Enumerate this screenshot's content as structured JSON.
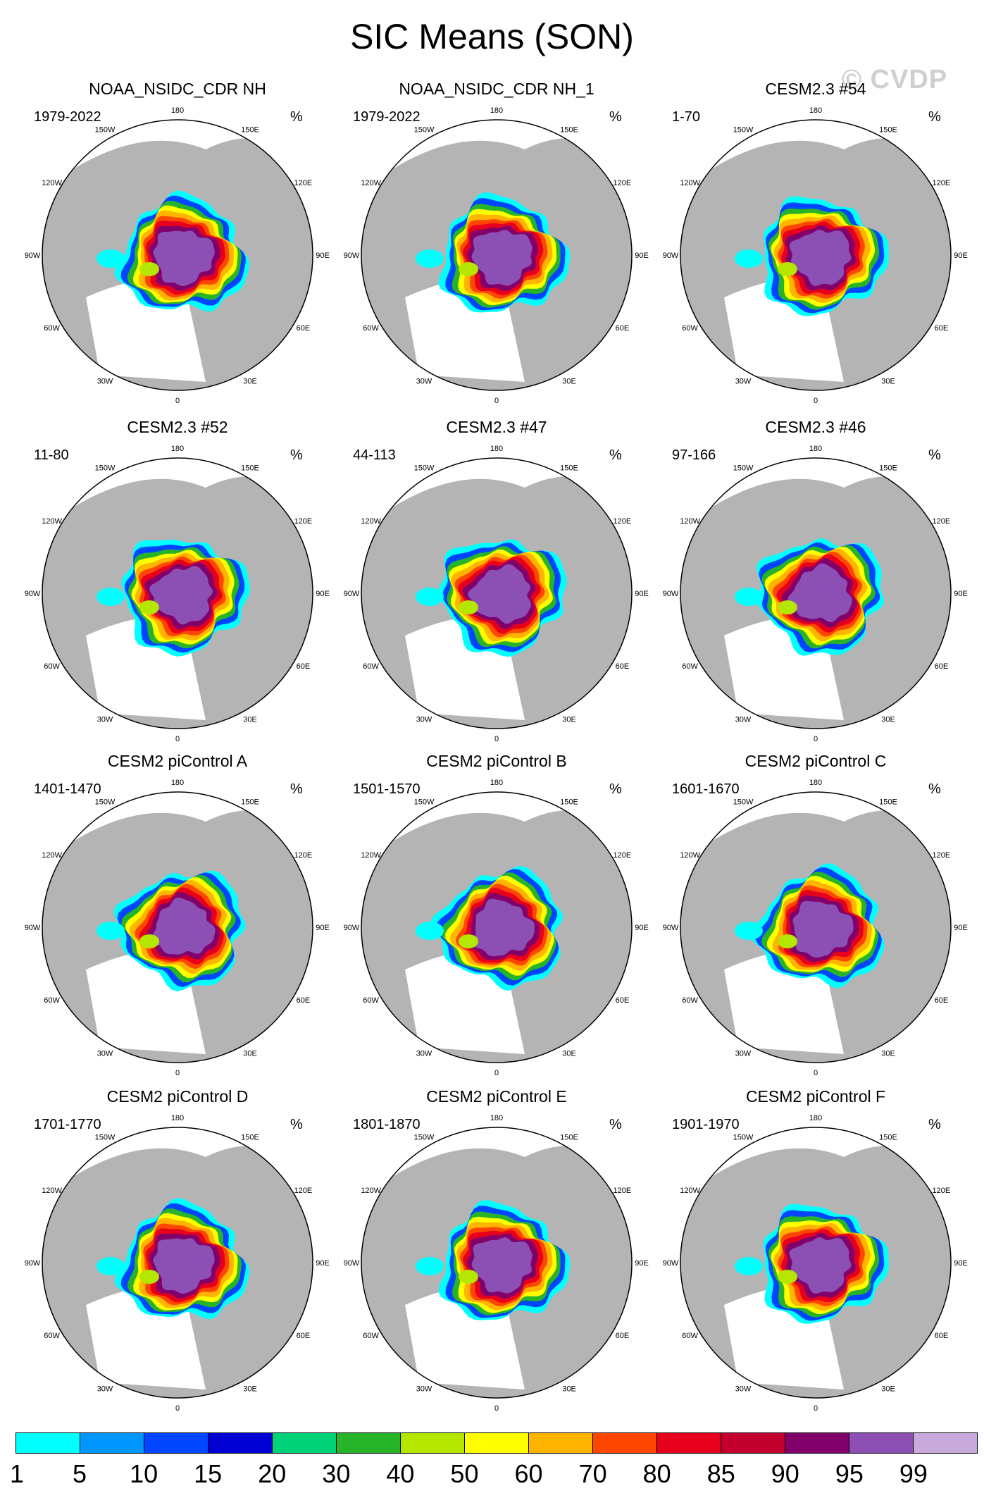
{
  "title": "SIC Means (SON)",
  "watermark": "© CVDP",
  "units": "%",
  "longitude_labels": [
    "180",
    "150E",
    "120E",
    "90E",
    "60E",
    "30E",
    "0",
    "30W",
    "60W",
    "90W",
    "120W",
    "150W"
  ],
  "panels": [
    {
      "title": "NOAA_NSIDC_CDR NH",
      "years": "1979-2022"
    },
    {
      "title": "NOAA_NSIDC_CDR NH_1",
      "years": "1979-2022"
    },
    {
      "title": "CESM2.3 #54",
      "years": "1-70"
    },
    {
      "title": "CESM2.3 #52",
      "years": "11-80"
    },
    {
      "title": "CESM2.3 #47",
      "years": "44-113"
    },
    {
      "title": "CESM2.3 #46",
      "years": "97-166"
    },
    {
      "title": "CESM2 piControl A",
      "years": "1401-1470"
    },
    {
      "title": "CESM2 piControl B",
      "years": "1501-1570"
    },
    {
      "title": "CESM2 piControl C",
      "years": "1601-1670"
    },
    {
      "title": "CESM2 piControl D",
      "years": "1701-1770"
    },
    {
      "title": "CESM2 piControl E",
      "years": "1801-1870"
    },
    {
      "title": "CESM2 piControl F",
      "years": "1901-1970"
    }
  ],
  "colorbar": {
    "labels": [
      "1",
      "5",
      "10",
      "15",
      "20",
      "30",
      "40",
      "50",
      "60",
      "70",
      "80",
      "85",
      "90",
      "95",
      "99"
    ],
    "colors": [
      "#00ffff",
      "#0096ff",
      "#0046ff",
      "#0000d2",
      "#00d27a",
      "#28b428",
      "#b4e600",
      "#ffff00",
      "#ffb400",
      "#ff4600",
      "#e6001e",
      "#c3002d",
      "#820069",
      "#8c50b4",
      "#c8aadc"
    ]
  },
  "colors": {
    "land": "#b4b4b4",
    "ocean": "#ffffff"
  }
}
